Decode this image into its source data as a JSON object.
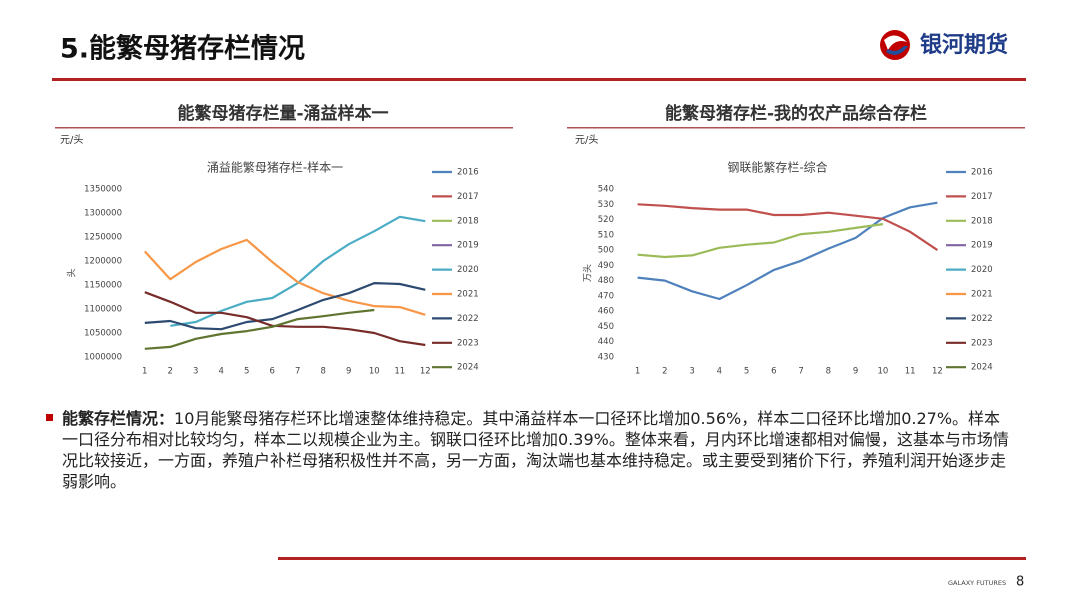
{
  "header": {
    "title": "5.能繁母猪存栏情况",
    "logo_text": "银河期货"
  },
  "sections": [
    {
      "heading": "能繁母猪存栏量-涌益样本一",
      "unit": "元/头"
    },
    {
      "heading": "能繁母猪存栏-我的农产品综合存栏",
      "unit": "元/头"
    }
  ],
  "chart_data": [
    {
      "type": "line",
      "title": "涌益能繁母猪存栏-样本一",
      "y_label": "头",
      "categories": [
        "1",
        "2",
        "3",
        "4",
        "5",
        "6",
        "7",
        "8",
        "9",
        "10",
        "11",
        "12"
      ],
      "ylim": [
        1000000,
        1350000
      ],
      "yticks": [
        1000000,
        1050000,
        1100000,
        1150000,
        1200000,
        1250000,
        1300000,
        1350000
      ],
      "series": [
        {
          "name": "2016",
          "color": "#4f81bd",
          "values": [
            null,
            null,
            null,
            null,
            null,
            null,
            null,
            null,
            null,
            null,
            null,
            null
          ]
        },
        {
          "name": "2017",
          "color": "#c0504d",
          "values": [
            null,
            null,
            null,
            null,
            null,
            null,
            null,
            null,
            null,
            null,
            null,
            null
          ]
        },
        {
          "name": "2018",
          "color": "#9bbb59",
          "values": [
            null,
            null,
            null,
            null,
            null,
            null,
            null,
            null,
            null,
            null,
            null,
            null
          ]
        },
        {
          "name": "2019",
          "color": "#8064a2",
          "values": [
            null,
            null,
            null,
            null,
            null,
            null,
            null,
            null,
            null,
            null,
            null,
            null
          ]
        },
        {
          "name": "2020",
          "color": "#4bacc6",
          "values": [
            null,
            1065000,
            1073000,
            1096000,
            1115000,
            1123000,
            1154000,
            1200000,
            1235000,
            1262000,
            1292000,
            1283000
          ]
        },
        {
          "name": "2021",
          "color": "#f79646",
          "values": [
            1220000,
            1162000,
            1198000,
            1225000,
            1244000,
            1198000,
            1156000,
            1133000,
            1117000,
            1106000,
            1104000,
            1088000
          ]
        },
        {
          "name": "2022",
          "color": "#2c4a70",
          "values": [
            1071000,
            1075000,
            1060000,
            1058000,
            1073000,
            1079000,
            1098000,
            1119000,
            1133000,
            1154000,
            1152000,
            1140000
          ]
        },
        {
          "name": "2023",
          "color": "#772c2a",
          "values": [
            1135000,
            1115000,
            1092000,
            1092000,
            1083000,
            1065000,
            1063000,
            1063000,
            1058000,
            1050000,
            1033000,
            1025000
          ]
        },
        {
          "name": "2024",
          "color": "#5f7530",
          "values": [
            1017000,
            1021000,
            1038000,
            1048000,
            1054000,
            1063000,
            1079000,
            1085000,
            1092000,
            1098000,
            null,
            null
          ]
        }
      ]
    },
    {
      "type": "line",
      "title": "钢联能繁存栏-综合",
      "y_label": "万头",
      "categories": [
        "1",
        "2",
        "3",
        "4",
        "5",
        "6",
        "7",
        "8",
        "9",
        "10",
        "11",
        "12"
      ],
      "ylim": [
        430,
        540
      ],
      "yticks": [
        430,
        440,
        450,
        460,
        470,
        480,
        490,
        500,
        510,
        520,
        530,
        540
      ],
      "series": [
        {
          "name": "2016",
          "color": "#4f81bd",
          "values": [
            482,
            480,
            473,
            468,
            477,
            487,
            493,
            501,
            508,
            521,
            528,
            531
          ]
        },
        {
          "name": "2017",
          "color": "#c0504d",
          "values": [
            530,
            529,
            527.5,
            526.5,
            526.5,
            523,
            523,
            524.5,
            522.5,
            520.5,
            512,
            500
          ]
        },
        {
          "name": "2018",
          "color": "#9bbb59",
          "values": [
            497,
            495.5,
            496.5,
            501.5,
            503.5,
            505,
            510.5,
            512,
            514.5,
            517,
            null,
            null
          ]
        },
        {
          "name": "2019",
          "color": "#8064a2",
          "values": [
            null,
            null,
            null,
            null,
            null,
            null,
            null,
            null,
            null,
            null,
            null,
            null
          ]
        },
        {
          "name": "2020",
          "color": "#4bacc6",
          "values": [
            null,
            null,
            null,
            null,
            null,
            null,
            null,
            null,
            null,
            null,
            null,
            null
          ]
        },
        {
          "name": "2021",
          "color": "#f79646",
          "values": [
            null,
            null,
            null,
            null,
            null,
            null,
            null,
            null,
            null,
            null,
            null,
            null
          ]
        },
        {
          "name": "2022",
          "color": "#2c4a70",
          "values": [
            null,
            null,
            null,
            null,
            null,
            null,
            null,
            null,
            null,
            null,
            null,
            null
          ]
        },
        {
          "name": "2023",
          "color": "#772c2a",
          "values": [
            null,
            null,
            null,
            null,
            null,
            null,
            null,
            null,
            null,
            null,
            null,
            null
          ]
        },
        {
          "name": "2024",
          "color": "#5f7530",
          "values": [
            null,
            null,
            null,
            null,
            null,
            null,
            null,
            null,
            null,
            null,
            null,
            null
          ]
        }
      ]
    }
  ],
  "paragraph": {
    "label": "能繁存栏情况：",
    "text": "10月能繁母猪存栏环比增速整体维持稳定。其中涌益样本一口径环比增加0.56%，样本二口径环比增加0.27%。样本一口径分布相对比较均匀，样本二以规模企业为主。钢联口径环比增加0.39%。整体来看，月内环比增速都相对偏慢，这基本与市场情况比较接近，一方面，养殖户补栏母猪积极性并不高，另一方面，淘汰端也基本维持稳定。或主要受到猪价下行，养殖利润开始逐步走弱影响。"
  },
  "footer": {
    "brand": "GALAXY FUTURES",
    "page": "8"
  }
}
